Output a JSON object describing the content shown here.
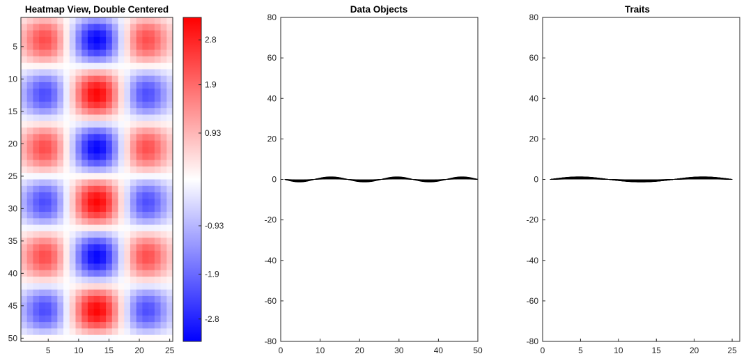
{
  "chart_data": [
    {
      "type": "heatmap",
      "title": "Heatmap View, Double Centered",
      "rows": 50,
      "cols": 25,
      "xlim": [
        0.5,
        25.5
      ],
      "ylim": [
        0.5,
        50.5
      ],
      "xticks": [
        "5",
        "10",
        "15",
        "20",
        "25"
      ],
      "yticks": [
        "5",
        "10",
        "15",
        "20",
        "25",
        "30",
        "35",
        "40",
        "45",
        "50"
      ],
      "pattern": {
        "row_period": 16.7,
        "row_peak_centers": [
          4,
          12,
          21,
          29,
          37,
          46
        ],
        "col_peak_centers": [
          4.5,
          13,
          21
        ],
        "col_peak_signs": [
          1,
          -1,
          1
        ],
        "max_abs": 3.25
      },
      "colorbar": {
        "ticks": [
          "2.8",
          "1.9",
          "0.93",
          "-0.93",
          "-1.9",
          "-2.8"
        ],
        "tick_values": [
          2.8,
          1.9,
          0.93,
          -0.93,
          -1.9,
          -2.8
        ],
        "range": [
          -3.25,
          3.25
        ],
        "colors": {
          "positive": "#ff0000",
          "zero": "#ffffff",
          "negative": "#0000ff"
        }
      }
    },
    {
      "type": "line",
      "title": "Data Objects",
      "xlim": [
        0,
        50
      ],
      "ylim": [
        -80,
        80
      ],
      "xticks": [
        "0",
        "10",
        "20",
        "30",
        "40",
        "50"
      ],
      "yticks": [
        "80",
        "60",
        "40",
        "20",
        "0",
        "-20",
        "-40",
        "-60",
        "-80"
      ],
      "series_count": 25,
      "lobes": {
        "boundaries": [
          1,
          8.5,
          17,
          25.5,
          33.5,
          42,
          50
        ],
        "signs": [
          -1,
          1,
          -1,
          1,
          -1,
          1
        ],
        "max_amplitude": 1.3
      },
      "line_color": "#000000"
    },
    {
      "type": "line",
      "title": "Traits",
      "xlim": [
        0,
        26
      ],
      "ylim": [
        -80,
        80
      ],
      "xticks": [
        "0",
        "5",
        "10",
        "15",
        "20",
        "25"
      ],
      "yticks": [
        "80",
        "60",
        "40",
        "20",
        "0",
        "-20",
        "-40",
        "-60",
        "-80"
      ],
      "series_count": 50,
      "lobes": {
        "boundaries": [
          1,
          8.7,
          17.3,
          25
        ],
        "signs": [
          1,
          -1,
          1
        ],
        "max_amplitude": 1.3
      },
      "line_color": "#000000"
    }
  ]
}
